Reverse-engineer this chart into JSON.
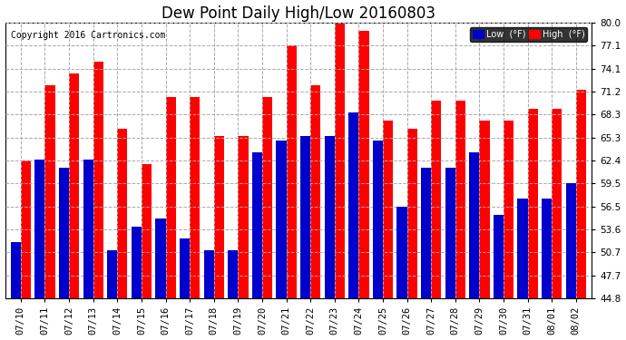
{
  "title": "Dew Point Daily High/Low 20160803",
  "copyright": "Copyright 2016 Cartronics.com",
  "categories": [
    "07/10",
    "07/11",
    "07/12",
    "07/13",
    "07/14",
    "07/15",
    "07/16",
    "07/17",
    "07/18",
    "07/19",
    "07/20",
    "07/21",
    "07/22",
    "07/23",
    "07/24",
    "07/25",
    "07/26",
    "07/27",
    "07/28",
    "07/29",
    "07/30",
    "07/31",
    "08/01",
    "08/02"
  ],
  "high_values": [
    62.4,
    72.0,
    73.5,
    75.0,
    66.5,
    62.0,
    70.5,
    70.5,
    65.5,
    65.5,
    70.5,
    77.1,
    72.0,
    81.0,
    79.0,
    67.5,
    66.5,
    70.0,
    70.0,
    67.5,
    67.5,
    69.0,
    69.0,
    71.5
  ],
  "low_values": [
    52.0,
    62.5,
    61.5,
    62.5,
    51.0,
    54.0,
    55.0,
    52.5,
    51.0,
    51.0,
    63.5,
    65.0,
    65.5,
    65.5,
    68.5,
    65.0,
    56.5,
    61.5,
    61.5,
    63.5,
    55.5,
    57.5,
    57.5,
    59.5
  ],
  "high_color": "#FF0000",
  "low_color": "#0000CC",
  "bg_color": "#FFFFFF",
  "plot_bg_color": "#FFFFFF",
  "grid_color": "#AAAAAA",
  "ylim_min": 44.8,
  "ylim_max": 80.0,
  "yticks": [
    44.8,
    47.7,
    50.7,
    53.6,
    56.5,
    59.5,
    62.4,
    65.3,
    68.3,
    71.2,
    74.1,
    77.1,
    80.0
  ],
  "title_fontsize": 12,
  "copyright_fontsize": 7,
  "tick_fontsize": 7.5,
  "legend_label_low": "Low  (°F)",
  "legend_label_high": "High  (°F)",
  "bar_width": 0.42,
  "figwidth": 6.9,
  "figheight": 3.75,
  "dpi": 100
}
